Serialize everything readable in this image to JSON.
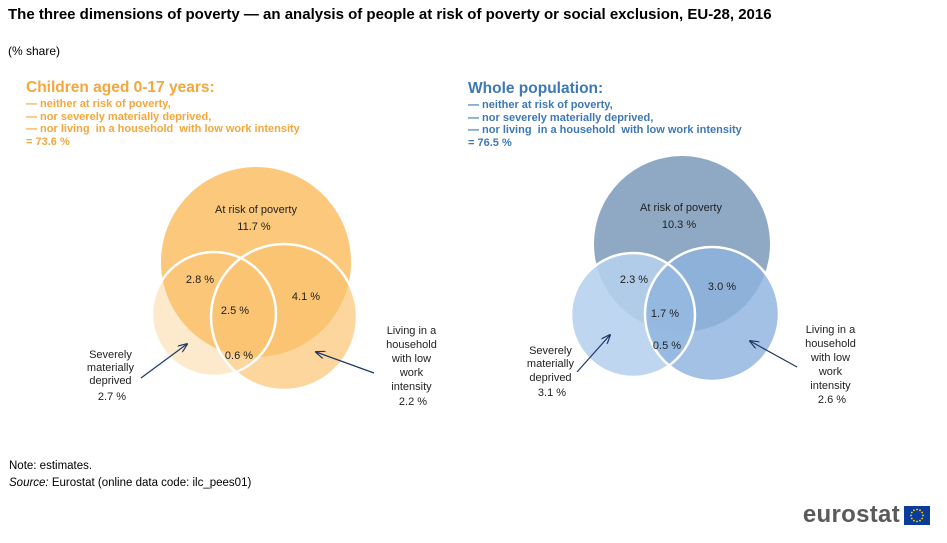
{
  "title": "The three dimensions of poverty — an analysis of people at risk of poverty or social exclusion, EU-28, 2016",
  "subtitle": "(% share)",
  "chart_data": [
    {
      "type": "venn",
      "heading": "Children aged 0-17 years:",
      "heading_lines": [
        "— neither at risk of poverty,",
        "— nor severely materially deprived,",
        "— nor living  in a household  with low work intensity",
        "= 73.6 %"
      ],
      "colors": {
        "accent": "#f3a73c",
        "poverty": "#fbc26e",
        "deprived": "#fdeacd",
        "workint": "#fcd69c"
      },
      "sets": [
        {
          "label": "At risk of poverty",
          "value": 11.7,
          "value_text": "11.7 %"
        },
        {
          "label_lines": [
            "Severely",
            "materially",
            "deprived"
          ],
          "value": 2.7,
          "value_text": "2.7 %"
        },
        {
          "label_lines": [
            "Living in a",
            "household",
            "with low",
            "work",
            "intensity"
          ],
          "value": 2.2,
          "value_text": "2.2 %"
        }
      ],
      "overlaps": [
        {
          "sets": [
            "poverty",
            "deprived"
          ],
          "value": 2.8,
          "value_text": "2.8 %"
        },
        {
          "sets": [
            "poverty",
            "workint"
          ],
          "value": 4.1,
          "value_text": "4.1 %"
        },
        {
          "sets": [
            "deprived",
            "workint"
          ],
          "value": 0.6,
          "value_text": "0.6 %"
        },
        {
          "sets": [
            "poverty",
            "deprived",
            "workint"
          ],
          "value": 2.5,
          "value_text": "2.5 %"
        }
      ]
    },
    {
      "type": "venn",
      "heading": "Whole population:",
      "heading_lines": [
        "— neither at risk of poverty,",
        "— nor severely materially deprived,",
        "— nor living  in a household  with low work intensity",
        "= 76.5 %"
      ],
      "colors": {
        "accent": "#3e78b5",
        "poverty": "#8fa8c3",
        "deprived": "#b5d0ee",
        "workint": "#8db3de"
      },
      "sets": [
        {
          "label": "At risk of poverty",
          "value": 10.3,
          "value_text": "10.3 %"
        },
        {
          "label_lines": [
            "Severely",
            "materially",
            "deprived"
          ],
          "value": 3.1,
          "value_text": "3.1 %"
        },
        {
          "label_lines": [
            "Living in a",
            "household",
            "with low",
            "work",
            "intensity"
          ],
          "value": 2.6,
          "value_text": "2.6 %"
        }
      ],
      "overlaps": [
        {
          "sets": [
            "poverty",
            "deprived"
          ],
          "value": 2.3,
          "value_text": "2.3 %"
        },
        {
          "sets": [
            "poverty",
            "workint"
          ],
          "value": 3.0,
          "value_text": "3.0 %"
        },
        {
          "sets": [
            "deprived",
            "workint"
          ],
          "value": 0.5,
          "value_text": "0.5 %"
        },
        {
          "sets": [
            "poverty",
            "deprived",
            "workint"
          ],
          "value": 1.7,
          "value_text": "1.7 %"
        }
      ]
    }
  ],
  "note": "Note: estimates.",
  "source": {
    "label": "Source:",
    "text": "Eurostat (online data code: ilc_pees01)"
  },
  "logo": {
    "text": "eurostat",
    "flag_icon": "eu-flag-icon"
  }
}
